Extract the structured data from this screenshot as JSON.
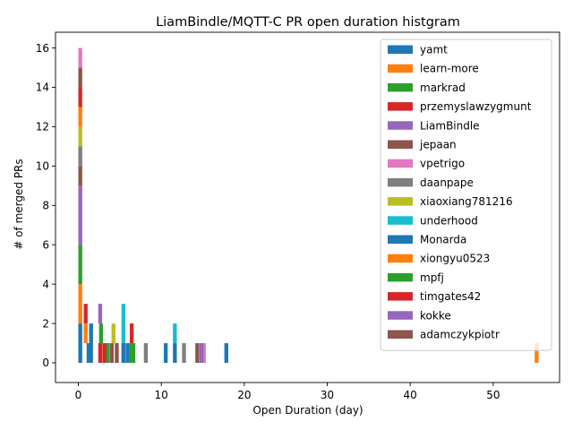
{
  "chart_data": {
    "type": "bar",
    "stacked": true,
    "title": "LiamBindle/MQTT-C PR open duration histgram",
    "xlabel": "Open Duration (day)",
    "ylabel": "# of merged PRs",
    "xlim": [
      -2.75,
      58
    ],
    "ylim": [
      -1,
      16.8
    ],
    "x_ticks": [
      0,
      10,
      20,
      30,
      40,
      50
    ],
    "y_ticks": [
      0,
      2,
      4,
      6,
      8,
      10,
      12,
      14,
      16
    ],
    "bin_width": 0.47,
    "grid": false,
    "legend_position": "upper right",
    "series": [
      {
        "name": "yamt",
        "color": "#1f77b4",
        "bars": [
          [
            0.0,
            0,
            2
          ],
          [
            1.0,
            0,
            1
          ],
          [
            1.3,
            0,
            2
          ],
          [
            5.2,
            0,
            1
          ],
          [
            5.7,
            0,
            1
          ],
          [
            10.3,
            0,
            1
          ],
          [
            11.4,
            0,
            1
          ],
          [
            17.6,
            0,
            1
          ]
        ]
      },
      {
        "name": "learn-more",
        "color": "#ff7f0e",
        "bars": [
          [
            0.0,
            2,
            4
          ],
          [
            0.65,
            1,
            2
          ],
          [
            55.0,
            0,
            1
          ]
        ]
      },
      {
        "name": "markrad",
        "color": "#2ca02c",
        "bars": [
          [
            0.0,
            4,
            6
          ],
          [
            2.5,
            1,
            2
          ],
          [
            3.3,
            0,
            1
          ],
          [
            6.4,
            0,
            1
          ]
        ]
      },
      {
        "name": "przemyslawzygmunt",
        "color": "#d62728",
        "bars": [
          [
            0.65,
            2,
            3
          ],
          [
            2.4,
            0,
            1
          ],
          [
            2.9,
            0,
            1
          ]
        ]
      },
      {
        "name": "LiamBindle",
        "color": "#9467bd",
        "bars": [
          [
            0.0,
            6,
            9
          ],
          [
            2.4,
            2,
            3
          ]
        ]
      },
      {
        "name": "jepaan",
        "color": "#8c564b",
        "bars": [
          [
            0.0,
            9,
            10
          ],
          [
            3.8,
            0,
            1
          ],
          [
            4.4,
            0,
            1
          ]
        ]
      },
      {
        "name": "vpetrigo",
        "color": "#e377c2",
        "bars": [
          [
            14.9,
            0,
            1
          ]
        ]
      },
      {
        "name": "daanpape",
        "color": "#7f7f7f",
        "bars": [
          [
            0.0,
            10,
            11
          ],
          [
            7.9,
            0,
            1
          ],
          [
            12.5,
            0,
            1
          ]
        ]
      },
      {
        "name": "xiaoxiang781216",
        "color": "#bcbd22",
        "bars": [
          [
            0.0,
            11,
            12
          ],
          [
            4.0,
            1,
            2
          ]
        ]
      },
      {
        "name": "underhood",
        "color": "#17becf",
        "bars": [
          [
            5.2,
            1,
            3
          ],
          [
            11.4,
            1,
            2
          ]
        ]
      },
      {
        "name": "Monarda",
        "color": "#1f77b4",
        "bars": [
          [
            5.2,
            0,
            1
          ]
        ]
      },
      {
        "name": "xiongyu0523",
        "color": "#ff7f0e",
        "bars": [
          [
            0.0,
            12,
            13
          ]
        ]
      },
      {
        "name": "mpfj",
        "color": "#2ca02c",
        "bars": [
          [
            6.1,
            0,
            1
          ]
        ]
      },
      {
        "name": "timgates42",
        "color": "#d62728",
        "bars": [
          [
            0.0,
            13,
            14
          ],
          [
            6.2,
            1,
            2
          ]
        ]
      },
      {
        "name": "kokke",
        "color": "#9467bd",
        "bars": [
          [
            14.6,
            0,
            1
          ]
        ]
      },
      {
        "name": "adamczykpiotr",
        "color": "#8c564b",
        "bars": [
          [
            0.0,
            14,
            15
          ],
          [
            14.1,
            0,
            1
          ]
        ]
      },
      {
        "name": "",
        "color": "#e377c2",
        "bars": [
          [
            0.0,
            15,
            16
          ]
        ]
      }
    ]
  }
}
